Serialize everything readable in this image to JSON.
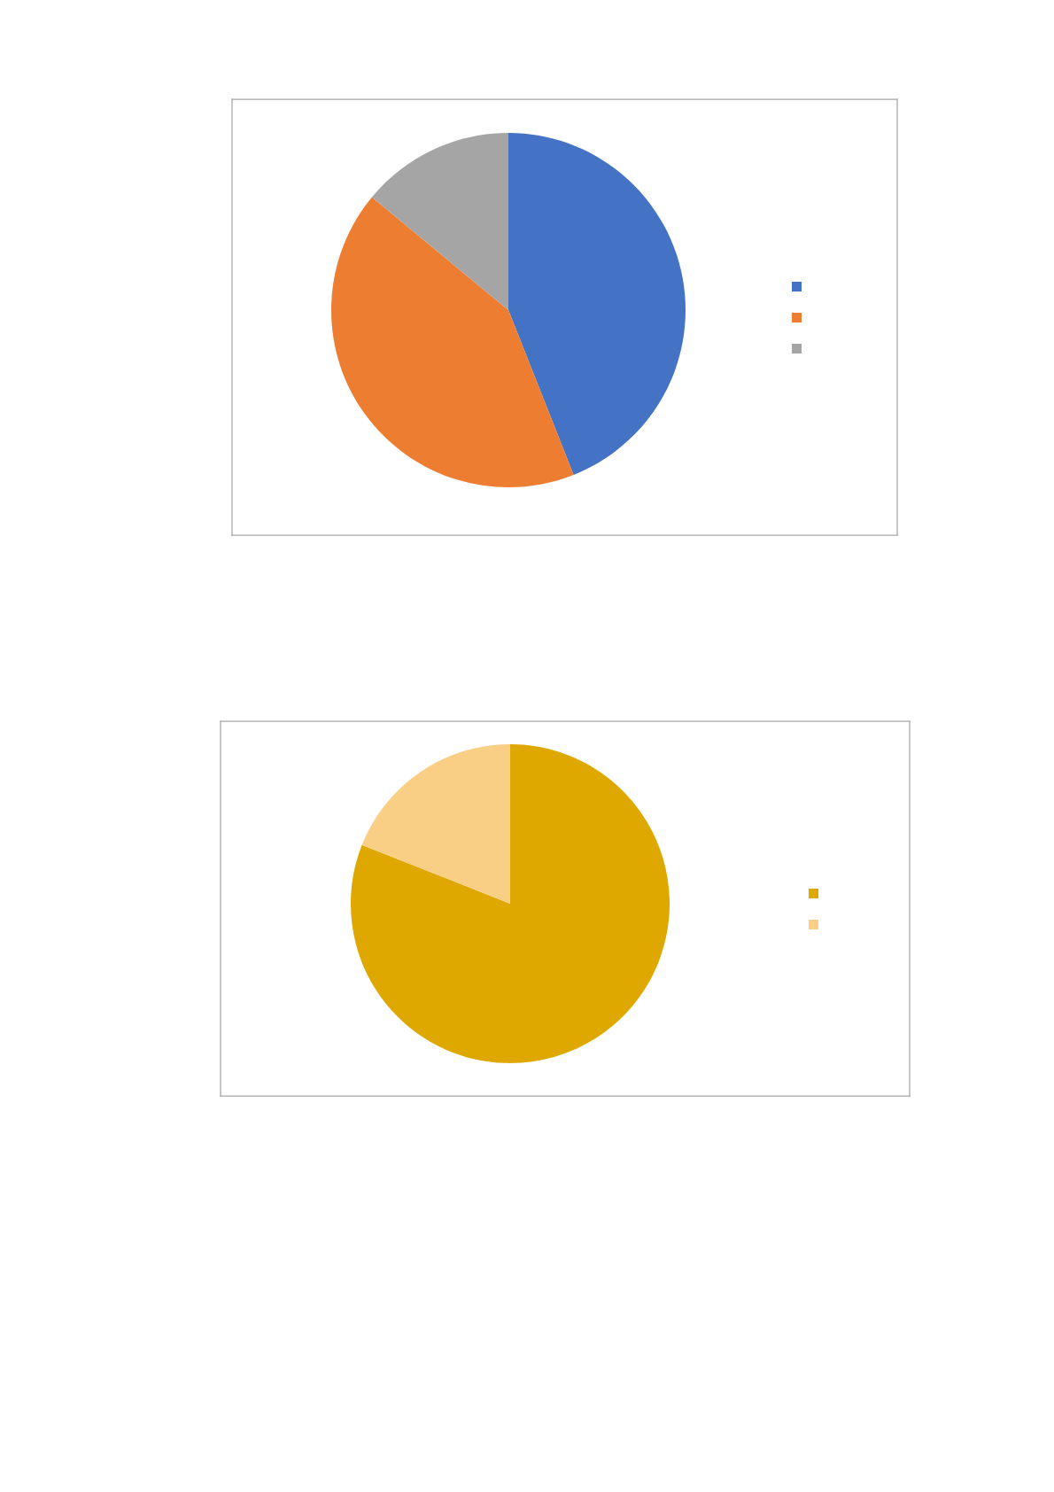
{
  "chart_data": [
    {
      "type": "pie",
      "categories": [
        null,
        null,
        null
      ],
      "values": [
        44,
        42,
        14
      ],
      "colors": [
        "#4472c4",
        "#ed7d31",
        "#a5a5a5"
      ]
    },
    {
      "type": "pie",
      "categories": [
        null,
        null
      ],
      "values": [
        81,
        19
      ],
      "colors": [
        "#dfa800",
        "#f8cf85"
      ]
    }
  ]
}
